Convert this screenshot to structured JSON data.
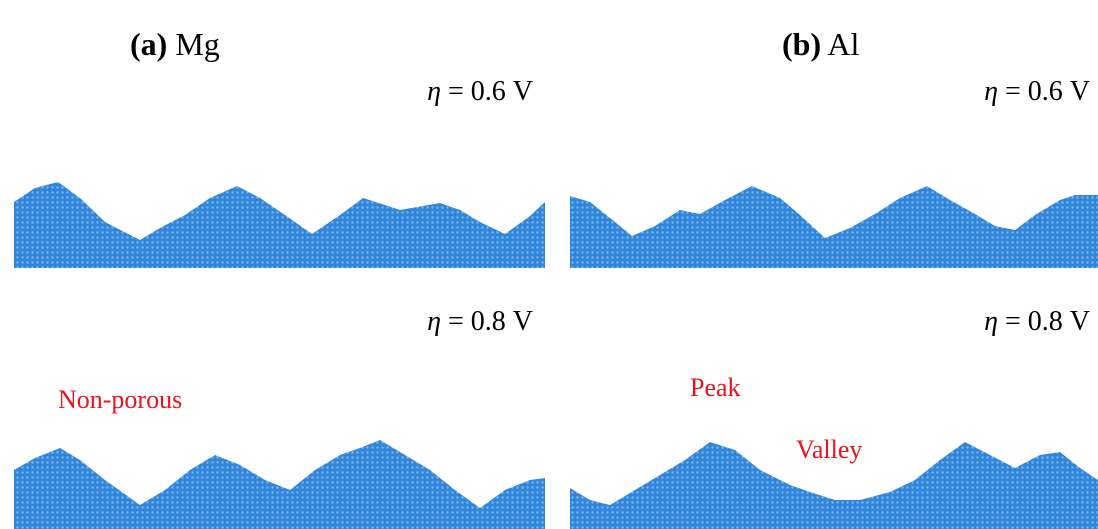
{
  "panels": [
    {
      "label": "(a)",
      "material": "Mg",
      "rows": [
        {
          "symbol": "η",
          "text": "= 0.6 V"
        },
        {
          "symbol": "η",
          "text": "= 0.8 V",
          "annotations": [
            "Non-porous"
          ]
        }
      ]
    },
    {
      "label": "(b)",
      "material": "Al",
      "rows": [
        {
          "symbol": "η",
          "text": "= 0.6 V"
        },
        {
          "symbol": "η",
          "text": "= 0.8 V",
          "annotations": [
            "Peak",
            "Valley"
          ]
        }
      ]
    }
  ]
}
